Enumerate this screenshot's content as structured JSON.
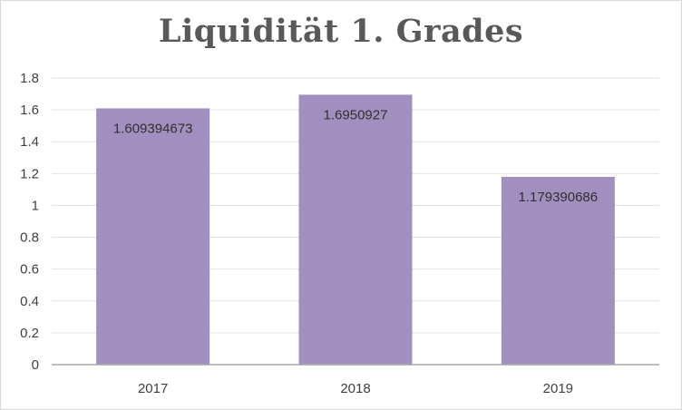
{
  "chart_data": {
    "type": "bar",
    "title": "Liquidität 1. Grades",
    "categories": [
      "2017",
      "2018",
      "2019"
    ],
    "values": [
      1.609394673,
      1.6950927,
      1.179390686
    ],
    "data_labels": [
      "1.609394673",
      "1.6950927",
      "1.179390686"
    ],
    "ylim": [
      0,
      1.8
    ],
    "yticks": [
      "0",
      "0.2",
      "0.4",
      "0.6",
      "0.8",
      "1",
      "1.2",
      "1.4",
      "1.6",
      "1.8"
    ],
    "grid": true,
    "legend": "none",
    "colors": {
      "bar": "#a08fbf",
      "grid": "#e3e3e3",
      "axis": "#a6a6a6"
    }
  }
}
